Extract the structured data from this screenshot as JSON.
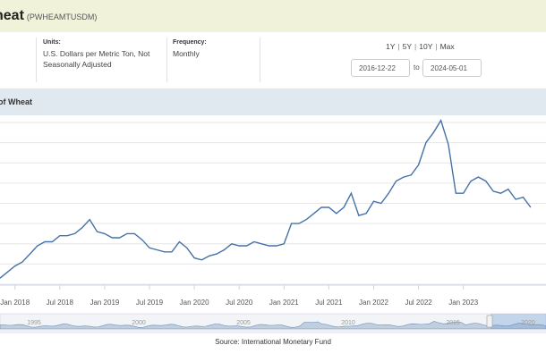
{
  "header": {
    "title": "heat",
    "series_id": "(PWHEAMTUSDM)"
  },
  "meta": {
    "units_label": "Units:",
    "units_value": "U.S. Dollars per Metric Ton, Not Seasonally Adjusted",
    "frequency_label": "Frequency:",
    "frequency_value": "Monthly"
  },
  "range": {
    "options": [
      "1Y",
      "5Y",
      "10Y",
      "Max"
    ],
    "start": "2016-12-22",
    "end": "2024-05-01",
    "to": "to"
  },
  "chart_title": "of Wheat",
  "source": "Source: International Monetary Fund",
  "colors": {
    "line": "#4572a7",
    "header_bg": "#f0f3d9",
    "chart_head_bg": "#e1e9f0"
  },
  "chart_data": {
    "type": "line",
    "title": "",
    "xlabel": "",
    "ylabel": "",
    "x_tick_labels": [
      "Jan 2018",
      "Jul 2018",
      "Jan 2019",
      "Jul 2019",
      "Jan 2020",
      "Jul 2020",
      "Jan 2021",
      "Jul 2021",
      "Jan 2022",
      "Jul 2022",
      "Jan 2023"
    ],
    "x_start": "2017-11",
    "y_axis_labels_visible": false,
    "ylim": [
      0,
      8
    ],
    "grid": true,
    "series": [
      {
        "values": [
          0.3,
          0.6,
          0.9,
          1.1,
          1.5,
          1.9,
          2.1,
          2.1,
          2.4,
          2.4,
          2.5,
          2.8,
          3.2,
          2.6,
          2.5,
          2.3,
          2.3,
          2.5,
          2.5,
          2.2,
          1.8,
          1.7,
          1.6,
          1.6,
          2.1,
          1.8,
          1.3,
          1.2,
          1.4,
          1.5,
          1.7,
          2.0,
          1.9,
          1.9,
          2.1,
          2.0,
          1.9,
          1.9,
          2.0,
          3.0,
          3.0,
          3.2,
          3.5,
          3.8,
          3.8,
          3.5,
          3.8,
          4.5,
          3.4,
          3.5,
          4.1,
          4.0,
          4.5,
          5.1,
          5.3,
          5.4,
          5.9,
          7.0,
          7.5,
          8.1,
          6.9,
          4.5,
          4.5,
          5.1,
          5.3,
          5.1,
          4.6,
          4.5,
          4.7,
          4.2,
          4.3,
          3.8
        ]
      }
    ],
    "navigator_labels": [
      "1995",
      "2000",
      "2005",
      "2010",
      "2015",
      "2020"
    ]
  }
}
